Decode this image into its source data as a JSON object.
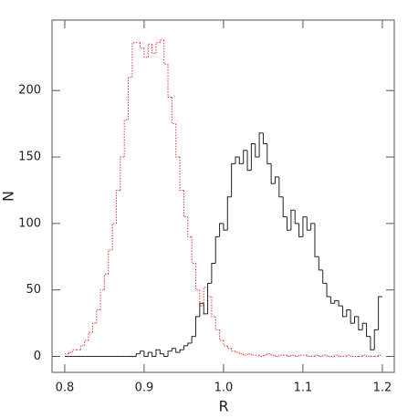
{
  "chart_data": {
    "type": "histogram",
    "x_label": "R",
    "y_label": "N",
    "bins": [
      0.8,
      0.805,
      0.81,
      0.815,
      0.82,
      0.825,
      0.83,
      0.835,
      0.84,
      0.845,
      0.85,
      0.855,
      0.86,
      0.865,
      0.87,
      0.875,
      0.88,
      0.885,
      0.89,
      0.895,
      0.9,
      0.905,
      0.91,
      0.915,
      0.92,
      0.925,
      0.93,
      0.935,
      0.94,
      0.945,
      0.95,
      0.955,
      0.96,
      0.965,
      0.97,
      0.975,
      0.98,
      0.985,
      0.99,
      0.995,
      1.0,
      1.005,
      1.01,
      1.015,
      1.02,
      1.025,
      1.03,
      1.035,
      1.04,
      1.045,
      1.05,
      1.055,
      1.06,
      1.065,
      1.07,
      1.075,
      1.08,
      1.085,
      1.09,
      1.095,
      1.1,
      1.105,
      1.11,
      1.115,
      1.12,
      1.125,
      1.13,
      1.135,
      1.14,
      1.145,
      1.15,
      1.155,
      1.16,
      1.165,
      1.17,
      1.175,
      1.18,
      1.185,
      1.19,
      1.195,
      1.2
    ],
    "series": [
      {
        "color": "#e8383d",
        "dash": "dotted",
        "values": [
          2,
          3,
          5,
          5,
          8,
          12,
          18,
          25,
          35,
          50,
          62,
          80,
          100,
          125,
          150,
          178,
          210,
          236,
          236,
          232,
          225,
          235,
          228,
          236,
          238,
          220,
          195,
          175,
          150,
          125,
          105,
          90,
          70,
          50,
          38,
          52,
          45,
          30,
          20,
          12,
          8,
          6,
          4,
          3,
          2,
          1,
          2,
          1,
          1,
          0,
          1,
          2,
          1,
          0,
          1,
          1,
          0,
          1,
          0,
          1,
          1,
          0,
          0,
          1,
          0,
          1,
          0,
          0,
          1,
          0,
          0,
          1,
          0,
          0,
          0,
          1,
          0,
          0,
          0,
          1
        ]
      },
      {
        "color": "#222222",
        "dash": "solid",
        "values": [
          0,
          0,
          0,
          0,
          0,
          0,
          0,
          0,
          0,
          0,
          0,
          0,
          0,
          0,
          0,
          0,
          0,
          0,
          2,
          4,
          0,
          3,
          0,
          5,
          2,
          0,
          4,
          6,
          3,
          5,
          8,
          10,
          15,
          30,
          40,
          32,
          55,
          70,
          90,
          100,
          95,
          120,
          145,
          150,
          145,
          155,
          140,
          160,
          150,
          168,
          160,
          145,
          130,
          135,
          120,
          105,
          95,
          110,
          100,
          90,
          105,
          95,
          100,
          75,
          65,
          55,
          45,
          40,
          42,
          38,
          30,
          35,
          25,
          30,
          20,
          25,
          15,
          5,
          20,
          45
        ]
      }
    ],
    "xlim": [
      0.784,
      1.215
    ],
    "ylim": [
      -12,
      253
    ],
    "xticks": [
      0.8,
      0.9,
      {
        "value": 1,
        "label": "1.0"
      },
      1.1,
      1.2
    ],
    "yticks": [
      0,
      50,
      100,
      150,
      200
    ]
  }
}
